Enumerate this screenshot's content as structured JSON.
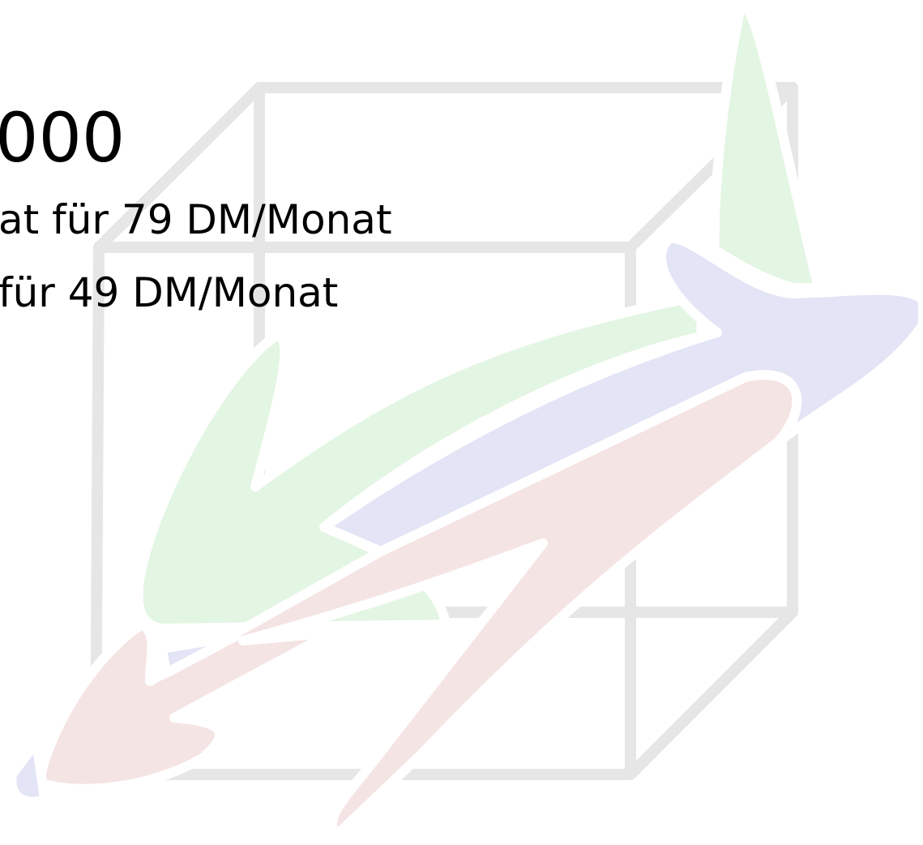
{
  "slide": {
    "title": "000",
    "lines": [
      "at für 79 DM/Monat",
      "für 49 DM/Monat"
    ]
  }
}
